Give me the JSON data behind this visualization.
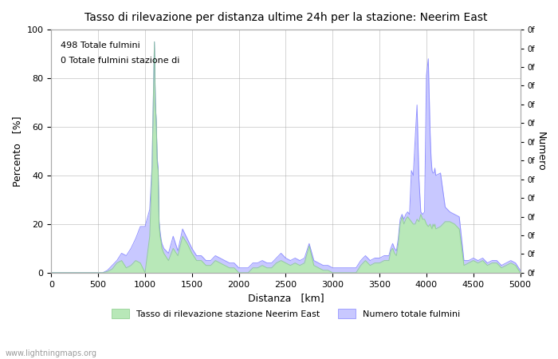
{
  "title": "Tasso di rilevazione per distanza ultime 24h per la stazione: Neerim East",
  "xlabel": "Distanza   [km]",
  "ylabel_left": "Percento   [%]",
  "ylabel_right": "Numero",
  "annotation_line1": "498 Totale fulmini",
  "annotation_line2": "0 Totale fulmini stazione di",
  "xlim": [
    0,
    5000
  ],
  "ylim": [
    0,
    100
  ],
  "xticks": [
    0,
    500,
    1000,
    1500,
    2000,
    2500,
    3000,
    3500,
    4000,
    4500,
    5000
  ],
  "yticks_left": [
    0,
    20,
    40,
    60,
    80,
    100
  ],
  "right_axis_labels": [
    "0f",
    "0f",
    "0f",
    "0f",
    "0f",
    "0f",
    "0f",
    "0f",
    "0f",
    "0f",
    "0f",
    "0f",
    "0f",
    "0f"
  ],
  "legend_label1": "Tasso di rilevazione stazione Neerim East",
  "legend_label2": "Numero totale fulmini",
  "color_detection": "#b8e8b8",
  "color_lightning": "#c8c8ff",
  "line_color": "#8888ff",
  "watermark": "www.lightningmaps.org",
  "background_color": "#ffffff",
  "grid_color": "#aaaaaa",
  "detection_data": [
    [
      0,
      0
    ],
    [
      50,
      0
    ],
    [
      100,
      0
    ],
    [
      150,
      0
    ],
    [
      200,
      0
    ],
    [
      250,
      0
    ],
    [
      300,
      0
    ],
    [
      350,
      0
    ],
    [
      400,
      0
    ],
    [
      450,
      0
    ],
    [
      500,
      0
    ],
    [
      550,
      0
    ],
    [
      600,
      0.5
    ],
    [
      650,
      1.5
    ],
    [
      700,
      4
    ],
    [
      750,
      5
    ],
    [
      800,
      2
    ],
    [
      850,
      3
    ],
    [
      900,
      5
    ],
    [
      950,
      4
    ],
    [
      1000,
      0
    ],
    [
      1050,
      15
    ],
    [
      1075,
      43
    ],
    [
      1100,
      95
    ],
    [
      1110,
      70
    ],
    [
      1120,
      62
    ],
    [
      1130,
      45
    ],
    [
      1140,
      42
    ],
    [
      1150,
      20
    ],
    [
      1160,
      15
    ],
    [
      1170,
      13
    ],
    [
      1180,
      10
    ],
    [
      1200,
      8
    ],
    [
      1250,
      5
    ],
    [
      1300,
      10
    ],
    [
      1350,
      7
    ],
    [
      1400,
      15
    ],
    [
      1450,
      12
    ],
    [
      1500,
      8
    ],
    [
      1550,
      5
    ],
    [
      1600,
      5
    ],
    [
      1650,
      3
    ],
    [
      1700,
      3
    ],
    [
      1750,
      5
    ],
    [
      1800,
      4
    ],
    [
      1850,
      3
    ],
    [
      1900,
      2
    ],
    [
      1950,
      2
    ],
    [
      2000,
      0
    ],
    [
      2050,
      0
    ],
    [
      2100,
      0
    ],
    [
      2150,
      2
    ],
    [
      2200,
      2
    ],
    [
      2250,
      3
    ],
    [
      2300,
      2
    ],
    [
      2350,
      2
    ],
    [
      2400,
      4
    ],
    [
      2450,
      5
    ],
    [
      2500,
      4
    ],
    [
      2550,
      3
    ],
    [
      2600,
      4
    ],
    [
      2650,
      3
    ],
    [
      2700,
      4
    ],
    [
      2750,
      11
    ],
    [
      2800,
      3
    ],
    [
      2850,
      2
    ],
    [
      2900,
      1
    ],
    [
      2950,
      1
    ],
    [
      3000,
      0
    ],
    [
      3050,
      0
    ],
    [
      3100,
      0
    ],
    [
      3150,
      0
    ],
    [
      3200,
      0
    ],
    [
      3250,
      0
    ],
    [
      3300,
      3
    ],
    [
      3350,
      5
    ],
    [
      3400,
      3
    ],
    [
      3450,
      4
    ],
    [
      3500,
      4
    ],
    [
      3550,
      5
    ],
    [
      3600,
      5
    ],
    [
      3620,
      9
    ],
    [
      3640,
      10
    ],
    [
      3660,
      8
    ],
    [
      3680,
      7
    ],
    [
      3700,
      12
    ],
    [
      3720,
      20
    ],
    [
      3740,
      23
    ],
    [
      3760,
      20
    ],
    [
      3780,
      22
    ],
    [
      3800,
      23
    ],
    [
      3820,
      22
    ],
    [
      3840,
      21
    ],
    [
      3860,
      20
    ],
    [
      3880,
      20
    ],
    [
      3900,
      22
    ],
    [
      3920,
      21
    ],
    [
      3940,
      24
    ],
    [
      3960,
      22
    ],
    [
      3980,
      22
    ],
    [
      4000,
      20
    ],
    [
      4020,
      19
    ],
    [
      4040,
      20
    ],
    [
      4050,
      19
    ],
    [
      4060,
      18
    ],
    [
      4070,
      20
    ],
    [
      4080,
      19
    ],
    [
      4090,
      20
    ],
    [
      4100,
      18
    ],
    [
      4150,
      19
    ],
    [
      4200,
      21
    ],
    [
      4250,
      21
    ],
    [
      4300,
      20
    ],
    [
      4350,
      18
    ],
    [
      4400,
      3
    ],
    [
      4450,
      4
    ],
    [
      4500,
      5
    ],
    [
      4550,
      4
    ],
    [
      4600,
      5
    ],
    [
      4650,
      3
    ],
    [
      4700,
      4
    ],
    [
      4750,
      4
    ],
    [
      4800,
      2
    ],
    [
      4850,
      3
    ],
    [
      4900,
      4
    ],
    [
      4950,
      3
    ],
    [
      5000,
      0
    ]
  ],
  "lightning_data": [
    [
      0,
      0
    ],
    [
      50,
      0
    ],
    [
      100,
      0
    ],
    [
      150,
      0
    ],
    [
      200,
      0
    ],
    [
      250,
      0
    ],
    [
      300,
      0
    ],
    [
      350,
      0
    ],
    [
      400,
      0
    ],
    [
      450,
      0
    ],
    [
      500,
      0
    ],
    [
      550,
      0
    ],
    [
      600,
      1
    ],
    [
      650,
      3
    ],
    [
      700,
      5
    ],
    [
      750,
      8
    ],
    [
      800,
      7
    ],
    [
      850,
      10
    ],
    [
      900,
      14
    ],
    [
      950,
      19
    ],
    [
      1000,
      19
    ],
    [
      1050,
      26
    ],
    [
      1075,
      44
    ],
    [
      1100,
      95
    ],
    [
      1110,
      70
    ],
    [
      1120,
      62
    ],
    [
      1130,
      47
    ],
    [
      1140,
      43
    ],
    [
      1150,
      21
    ],
    [
      1160,
      17
    ],
    [
      1170,
      14
    ],
    [
      1180,
      12
    ],
    [
      1200,
      10
    ],
    [
      1250,
      8
    ],
    [
      1300,
      15
    ],
    [
      1350,
      9
    ],
    [
      1400,
      18
    ],
    [
      1450,
      14
    ],
    [
      1500,
      10
    ],
    [
      1550,
      7
    ],
    [
      1600,
      7
    ],
    [
      1650,
      5
    ],
    [
      1700,
      5
    ],
    [
      1750,
      7
    ],
    [
      1800,
      6
    ],
    [
      1850,
      5
    ],
    [
      1900,
      4
    ],
    [
      1950,
      4
    ],
    [
      2000,
      2
    ],
    [
      2050,
      2
    ],
    [
      2100,
      2
    ],
    [
      2150,
      4
    ],
    [
      2200,
      4
    ],
    [
      2250,
      5
    ],
    [
      2300,
      4
    ],
    [
      2350,
      4
    ],
    [
      2400,
      6
    ],
    [
      2450,
      8
    ],
    [
      2500,
      6
    ],
    [
      2550,
      5
    ],
    [
      2600,
      6
    ],
    [
      2650,
      5
    ],
    [
      2700,
      6
    ],
    [
      2750,
      12
    ],
    [
      2800,
      5
    ],
    [
      2850,
      4
    ],
    [
      2900,
      3
    ],
    [
      2950,
      3
    ],
    [
      3000,
      2
    ],
    [
      3050,
      2
    ],
    [
      3100,
      2
    ],
    [
      3150,
      2
    ],
    [
      3200,
      2
    ],
    [
      3250,
      2
    ],
    [
      3300,
      5
    ],
    [
      3350,
      7
    ],
    [
      3400,
      5
    ],
    [
      3450,
      6
    ],
    [
      3500,
      6
    ],
    [
      3550,
      7
    ],
    [
      3600,
      7
    ],
    [
      3620,
      10
    ],
    [
      3640,
      12
    ],
    [
      3660,
      10
    ],
    [
      3680,
      9
    ],
    [
      3700,
      14
    ],
    [
      3720,
      22
    ],
    [
      3740,
      24
    ],
    [
      3760,
      22
    ],
    [
      3780,
      24
    ],
    [
      3800,
      25
    ],
    [
      3820,
      24
    ],
    [
      3840,
      42
    ],
    [
      3860,
      40
    ],
    [
      3880,
      55
    ],
    [
      3900,
      69
    ],
    [
      3920,
      39
    ],
    [
      3940,
      25
    ],
    [
      3960,
      24
    ],
    [
      3980,
      25
    ],
    [
      4000,
      81
    ],
    [
      4020,
      88
    ],
    [
      4040,
      57
    ],
    [
      4050,
      47
    ],
    [
      4060,
      42
    ],
    [
      4070,
      41
    ],
    [
      4080,
      41
    ],
    [
      4090,
      43
    ],
    [
      4100,
      40
    ],
    [
      4150,
      41
    ],
    [
      4200,
      27
    ],
    [
      4250,
      25
    ],
    [
      4300,
      24
    ],
    [
      4350,
      23
    ],
    [
      4400,
      5
    ],
    [
      4450,
      5
    ],
    [
      4500,
      6
    ],
    [
      4550,
      5
    ],
    [
      4600,
      6
    ],
    [
      4650,
      4
    ],
    [
      4700,
      5
    ],
    [
      4750,
      5
    ],
    [
      4800,
      3
    ],
    [
      4850,
      4
    ],
    [
      4900,
      5
    ],
    [
      4950,
      4
    ],
    [
      5000,
      1
    ]
  ]
}
